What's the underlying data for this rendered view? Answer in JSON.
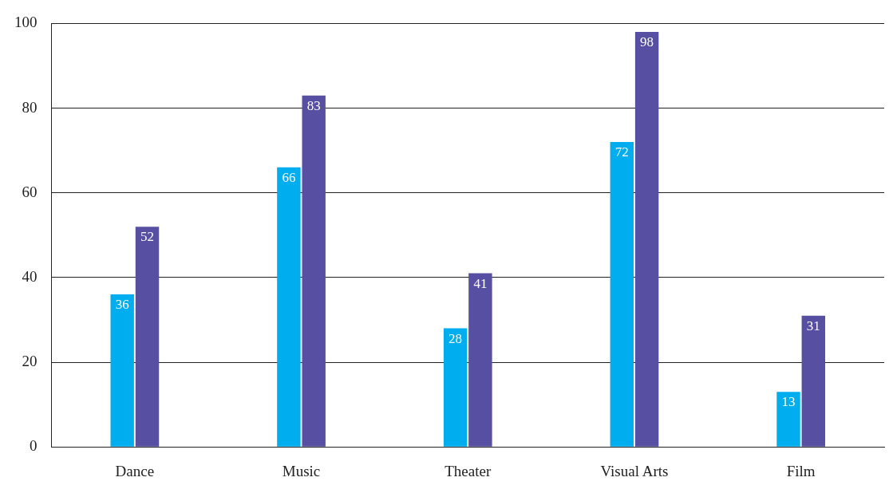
{
  "chart_data": {
    "type": "bar",
    "categories": [
      "Dance",
      "Music",
      "Theater",
      "Visual Arts",
      "Film"
    ],
    "series": [
      {
        "color": "#00adef",
        "values": [
          36,
          66,
          28,
          72,
          13
        ]
      },
      {
        "color": "#574fa1",
        "values": [
          52,
          83,
          41,
          98,
          31
        ]
      }
    ],
    "ylim": [
      0,
      100
    ],
    "yticks": [
      0,
      20,
      40,
      60,
      80,
      100
    ],
    "grid": "y",
    "legend": false,
    "data_labels": true
  }
}
